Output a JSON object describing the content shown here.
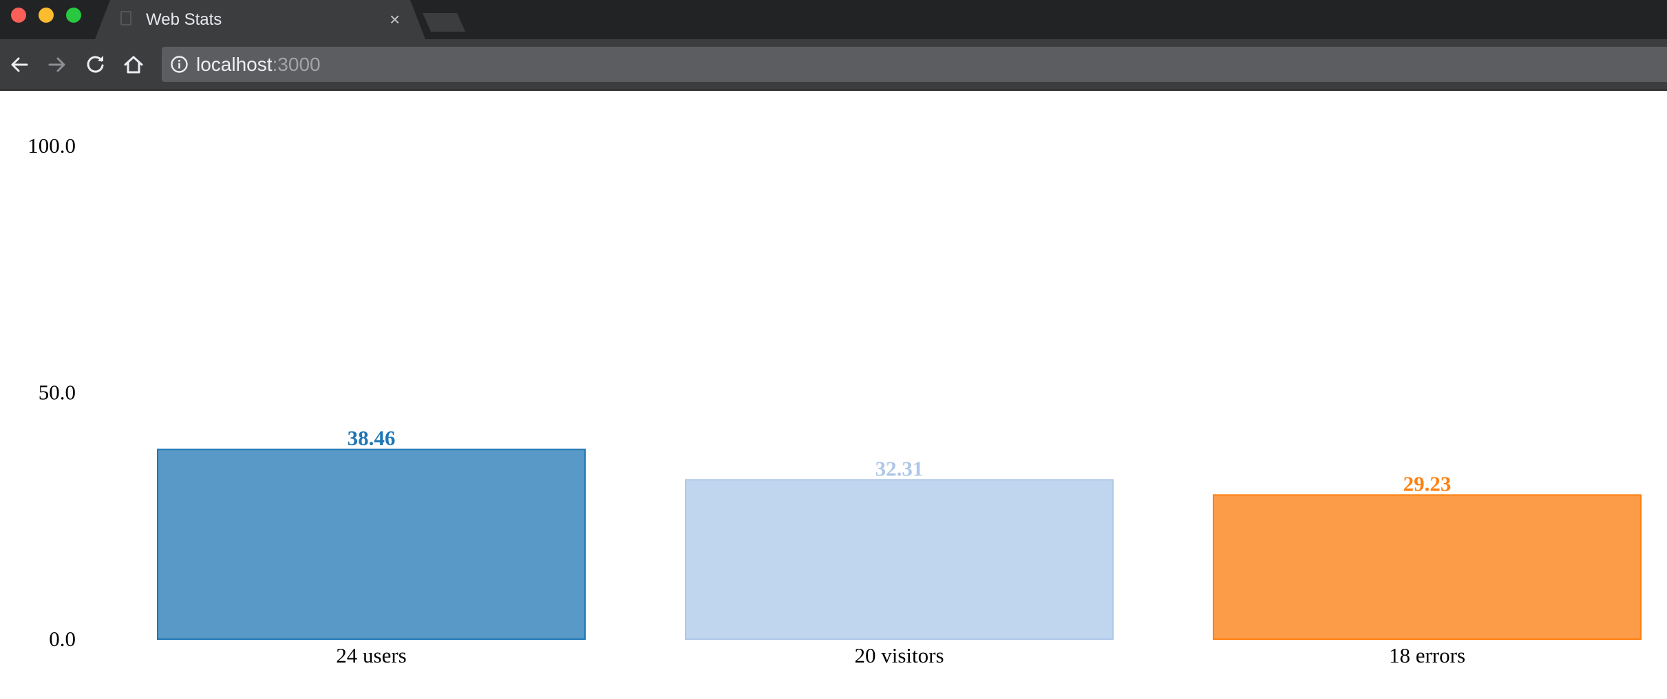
{
  "window": {
    "tab_title": "Web Stats",
    "tab_close_glyph": "×"
  },
  "toolbar": {
    "back_icon": "arrow-left-icon",
    "forward_icon": "arrow-right-icon",
    "reload_icon": "reload-icon",
    "home_icon": "home-icon",
    "info_icon": "info-icon",
    "url_host": "localhost",
    "url_port": ":3000"
  },
  "colors": {
    "tabstrip": "#222325",
    "toolbar": "#3c3d3f",
    "omnibox": "#5c5d60"
  },
  "chart_data": {
    "type": "bar",
    "title": "",
    "xlabel": "",
    "ylabel": "",
    "ylim": [
      0,
      100
    ],
    "yticks": [
      "100.0",
      "50.0",
      "0.0"
    ],
    "ytick_values": [
      100,
      50,
      0
    ],
    "grid": false,
    "categories": [
      "24 users",
      "20 visitors",
      "18 errors"
    ],
    "values": [
      38.46,
      32.31,
      29.23
    ],
    "data_labels": [
      "38.46",
      "32.31",
      "29.23"
    ],
    "fill_colors": [
      "#5899c7",
      "#c0d5ee",
      "#fd9c48"
    ],
    "stroke_colors": [
      "#1f77b4",
      "#aec7e8",
      "#ff7f0e"
    ],
    "label_colors": [
      "#1f77b4",
      "#aec7e8",
      "#ff7f0e"
    ]
  }
}
